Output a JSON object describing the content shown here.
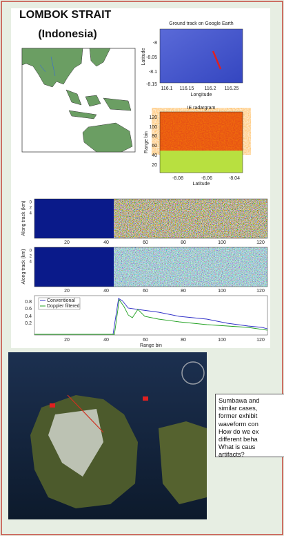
{
  "title": [
    "LOMBOK STRAIT",
    "(Indonesia)"
  ],
  "ground_track": {
    "title": "Ground track on Google Earth",
    "ylabel": "Latitude",
    "xlabel": "Longitude",
    "yticks": [
      "-8",
      "-8.05",
      "-8.1",
      "-8.15"
    ],
    "xticks": [
      "116.1",
      "116.15",
      "116.2",
      "116.25"
    ]
  },
  "radargram": {
    "title": "IE radargram",
    "ylabel": "Range bin",
    "xlabel": "Latitude",
    "yticks": [
      "120",
      "100",
      "80",
      "60",
      "40",
      "20"
    ],
    "xticks": [
      "-8.08",
      "-8.06",
      "-8.04"
    ]
  },
  "waterfalls": [
    {
      "ylabel": "Along track (km)",
      "yticks": [
        "0",
        "2",
        "4"
      ],
      "xticks": [
        "20",
        "40",
        "60",
        "80",
        "100",
        "120"
      ]
    },
    {
      "ylabel": "Along track (km)",
      "yticks": [
        "0",
        "2",
        "4"
      ],
      "xticks": [
        "20",
        "40",
        "60",
        "80",
        "100",
        "120"
      ]
    }
  ],
  "profile": {
    "legend": [
      "Conventional",
      "Doppler filtered"
    ],
    "yticks": [
      "0.8",
      "0.6",
      "0.4",
      "0.2"
    ],
    "xticks": [
      "20",
      "40",
      "60",
      "80",
      "100",
      "120"
    ],
    "xlabel": "Range bin"
  },
  "note": {
    "lines": [
      "Sumbawa and",
      "similar cases,",
      "former exhibit",
      "waveform con",
      "How do we ex",
      "different beha",
      "What  is caus",
      "artifacts?"
    ]
  }
}
